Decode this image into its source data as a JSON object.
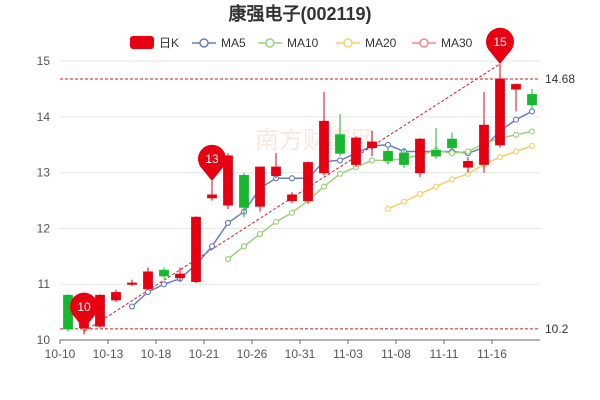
{
  "chart_data": {
    "type": "candlestick",
    "title": "康强电子(002119)",
    "x_tick_labels": [
      "10-10",
      "10-13",
      "10-18",
      "10-21",
      "10-26",
      "10-31",
      "11-03",
      "11-08",
      "11-11",
      "11-16"
    ],
    "y_tick_labels": [
      "10",
      "11",
      "12",
      "13",
      "14",
      "15"
    ],
    "ylim": [
      10,
      15.2
    ],
    "legend": [
      {
        "name": "日K",
        "color": "#e60012",
        "style": "rect"
      },
      {
        "name": "MA5",
        "color": "#6a7ec5",
        "style": "line"
      },
      {
        "name": "MA10",
        "color": "#9ad27a",
        "style": "line"
      },
      {
        "name": "MA20",
        "color": "#f4cf6b",
        "style": "line"
      },
      {
        "name": "MA30",
        "color": "#f08a8a",
        "style": "line"
      }
    ],
    "colors": {
      "up": "#e60012",
      "down": "#17b82d",
      "grid": "#e6e6e6",
      "axis": "#666666"
    },
    "candles": [
      {
        "date": "10-10",
        "open": 10.8,
        "close": 10.2,
        "low": 10.15,
        "high": 10.82
      },
      {
        "date": "10-11",
        "open": 10.22,
        "close": 10.78,
        "low": 10.1,
        "high": 10.8
      },
      {
        "date": "10-12",
        "open": 10.25,
        "close": 10.8,
        "low": 10.22,
        "high": 10.82
      },
      {
        "date": "10-13",
        "open": 10.72,
        "close": 10.85,
        "low": 10.68,
        "high": 10.9
      },
      {
        "date": "10-14",
        "open": 11.0,
        "close": 11.02,
        "low": 10.97,
        "high": 11.08
      },
      {
        "date": "10-17",
        "open": 10.92,
        "close": 11.22,
        "low": 10.9,
        "high": 11.3
      },
      {
        "date": "10-18",
        "open": 11.25,
        "close": 11.15,
        "low": 11.1,
        "high": 11.3
      },
      {
        "date": "10-19",
        "open": 11.12,
        "close": 11.18,
        "low": 11.05,
        "high": 11.3
      },
      {
        "date": "10-20",
        "open": 11.05,
        "close": 12.2,
        "low": 11.02,
        "high": 12.22
      },
      {
        "date": "10-21",
        "open": 12.55,
        "close": 12.6,
        "low": 12.5,
        "high": 12.85
      },
      {
        "date": "10-24",
        "open": 12.42,
        "close": 13.3,
        "low": 12.35,
        "high": 13.35
      },
      {
        "date": "10-25",
        "open": 12.95,
        "close": 12.38,
        "low": 12.2,
        "high": 13.0
      },
      {
        "date": "10-26",
        "open": 12.4,
        "close": 13.1,
        "low": 12.3,
        "high": 13.1
      },
      {
        "date": "10-27",
        "open": 12.95,
        "close": 13.1,
        "low": 12.9,
        "high": 13.35
      },
      {
        "date": "10-28",
        "open": 12.5,
        "close": 12.6,
        "low": 12.45,
        "high": 12.65
      },
      {
        "date": "10-31",
        "open": 12.5,
        "close": 13.18,
        "low": 12.45,
        "high": 13.2
      },
      {
        "date": "11-01",
        "open": 13.0,
        "close": 13.92,
        "low": 12.95,
        "high": 14.45
      },
      {
        "date": "11-02",
        "open": 13.68,
        "close": 13.35,
        "low": 13.3,
        "high": 14.05
      },
      {
        "date": "11-03",
        "open": 13.15,
        "close": 13.62,
        "low": 13.1,
        "high": 13.65
      },
      {
        "date": "11-04",
        "open": 13.45,
        "close": 13.55,
        "low": 13.3,
        "high": 13.75
      },
      {
        "date": "11-07",
        "open": 13.38,
        "close": 13.22,
        "low": 13.15,
        "high": 13.45
      },
      {
        "date": "11-08",
        "open": 13.35,
        "close": 13.15,
        "low": 13.08,
        "high": 13.45
      },
      {
        "date": "11-09",
        "open": 13.0,
        "close": 13.6,
        "low": 12.92,
        "high": 13.62
      },
      {
        "date": "11-10",
        "open": 13.4,
        "close": 13.3,
        "low": 13.25,
        "high": 13.8
      },
      {
        "date": "11-11",
        "open": 13.6,
        "close": 13.45,
        "low": 13.4,
        "high": 13.72
      },
      {
        "date": "11-14",
        "open": 13.1,
        "close": 13.2,
        "low": 13.0,
        "high": 13.28
      },
      {
        "date": "11-15",
        "open": 13.15,
        "close": 13.85,
        "low": 13.0,
        "high": 14.45
      },
      {
        "date": "11-16",
        "open": 13.5,
        "close": 14.68,
        "low": 13.45,
        "high": 14.95
      },
      {
        "date": "11-17",
        "open": 14.5,
        "close": 14.58,
        "low": 14.1,
        "high": 14.6
      },
      {
        "date": "11-18",
        "open": 14.4,
        "close": 14.22,
        "low": 14.15,
        "high": 14.5
      }
    ],
    "ma5": [
      null,
      null,
      null,
      null,
      10.6,
      10.86,
      11.0,
      11.1,
      11.35,
      11.68,
      12.1,
      12.3,
      12.72,
      12.9,
      12.9,
      12.9,
      13.2,
      13.22,
      13.35,
      13.48,
      13.5,
      13.38,
      13.38,
      13.38,
      13.38,
      13.35,
      13.45,
      13.75,
      13.95,
      14.1
    ],
    "ma10": [
      null,
      null,
      null,
      null,
      null,
      null,
      null,
      null,
      null,
      null,
      11.45,
      11.68,
      11.9,
      12.12,
      12.28,
      12.5,
      12.75,
      12.98,
      13.1,
      13.22,
      13.22,
      13.25,
      13.32,
      13.4,
      13.35,
      13.38,
      13.52,
      13.62,
      13.68,
      13.74
    ],
    "ma20": [
      null,
      null,
      null,
      null,
      null,
      null,
      null,
      null,
      null,
      null,
      null,
      null,
      null,
      null,
      null,
      null,
      null,
      null,
      null,
      null,
      12.35,
      12.48,
      12.62,
      12.75,
      12.88,
      12.98,
      13.15,
      13.28,
      13.38,
      13.48
    ],
    "ma30": [],
    "reference_lines": [
      {
        "label": "14.68",
        "value": 14.68,
        "color": "#d11c1c"
      },
      {
        "label": "10.2",
        "value": 10.2,
        "color": "#d11c1c"
      }
    ],
    "markers": [
      {
        "label": "10",
        "index": 1,
        "value": 10.2,
        "color": "#e60012"
      },
      {
        "label": "13",
        "index": 9,
        "value": 12.85,
        "color": "#e60012"
      },
      {
        "label": "15",
        "index": 27,
        "value": 14.95,
        "color": "#e60012"
      }
    ],
    "trend_line": {
      "from": {
        "index": 1,
        "value": 10.15
      },
      "to": {
        "index": 27,
        "value": 14.95
      },
      "color": "#d11c1c"
    },
    "watermark": "南方财富网"
  }
}
